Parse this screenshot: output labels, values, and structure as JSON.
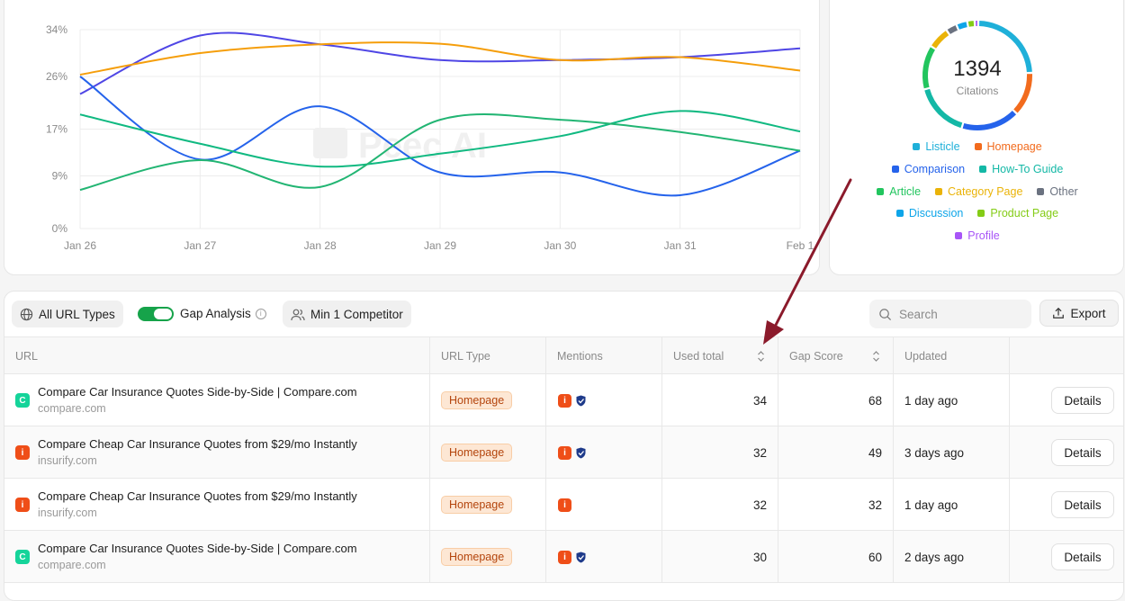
{
  "chart_data": [
    {
      "type": "line",
      "title": "",
      "xlabel": "",
      "ylabel": "",
      "x": [
        "Jan 26",
        "Jan 27",
        "Jan 28",
        "Jan 29",
        "Jan 30",
        "Jan 31",
        "Feb 1"
      ],
      "y_ticks": [
        "0%",
        "9%",
        "17%",
        "26%",
        "34%"
      ],
      "ylim": [
        0,
        34
      ],
      "grid": true,
      "series": [
        {
          "color": "#4f46e5",
          "values": [
            23,
            33,
            31.5,
            28.8,
            28.8,
            29.3,
            30.8
          ]
        },
        {
          "color": "#f59e0b",
          "values": [
            26.3,
            30,
            31.5,
            31.6,
            28.8,
            29.3,
            27
          ]
        },
        {
          "color": "#2563eb",
          "values": [
            26,
            11.8,
            20.9,
            9.6,
            9.6,
            5.7,
            13.3
          ]
        },
        {
          "color": "#10b981",
          "values": [
            19.5,
            14.5,
            10.6,
            12.8,
            15.8,
            20.1,
            16.6
          ]
        },
        {
          "color": "#22b573",
          "values": [
            6.6,
            11.7,
            7.1,
            18.6,
            18.6,
            16.5,
            13.3
          ]
        }
      ],
      "watermark": "Peec AI"
    },
    {
      "type": "pie",
      "title": "",
      "center_value": "1394",
      "center_label": "Citations",
      "slices": [
        {
          "label": "Listicle",
          "color": "#1fb0d9",
          "value": 22
        },
        {
          "label": "Homepage",
          "color": "#f26b1d",
          "value": 12
        },
        {
          "label": "Comparison",
          "color": "#2563eb",
          "value": 16
        },
        {
          "label": "How-To Guide",
          "color": "#14b8a6",
          "value": 15
        },
        {
          "label": "Article",
          "color": "#22c55e",
          "value": 12
        },
        {
          "label": "Category Page",
          "color": "#eab308",
          "value": 6
        },
        {
          "label": "Other",
          "color": "#6b7280",
          "value": 3
        },
        {
          "label": "Discussion",
          "color": "#0ea5e9",
          "value": 3
        },
        {
          "label": "Product Page",
          "color": "#84cc16",
          "value": 2
        },
        {
          "label": "Profile",
          "color": "#a855f7",
          "value": 1
        }
      ]
    }
  ],
  "legend_rows": [
    [
      "Listicle",
      "Homepage"
    ],
    [
      "Comparison",
      "How-To Guide"
    ],
    [
      "Article",
      "Category Page",
      "Other"
    ],
    [
      "Discussion",
      "Product Page"
    ],
    [
      "Profile"
    ]
  ],
  "toolbar": {
    "url_types_label": "All URL Types",
    "gap_analysis_label": "Gap Analysis",
    "competitor_label": "Min 1 Competitor",
    "search_placeholder": "Search",
    "export_label": "Export"
  },
  "table": {
    "columns": [
      "URL",
      "URL Type",
      "Mentions",
      "Used total",
      "Gap Score",
      "Updated",
      ""
    ],
    "details_label": "Details",
    "rows": [
      {
        "title": "Compare Car Insurance Quotes Side-by-Side | Compare.com",
        "domain": "compare.com",
        "favicon": "C",
        "favicon_color": "#15d49a",
        "type": "Homepage",
        "mentions": [
          "brand-icon",
          "shield-icon"
        ],
        "used_total": "34",
        "gap_score": "68",
        "updated": "1 day ago"
      },
      {
        "title": "Compare Cheap Car Insurance Quotes from $29/mo Instantly",
        "domain": "insurify.com",
        "favicon": "i",
        "favicon_color": "#ef4e18",
        "type": "Homepage",
        "mentions": [
          "brand-icon",
          "shield-icon"
        ],
        "used_total": "32",
        "gap_score": "49",
        "updated": "3 days ago"
      },
      {
        "title": "Compare Cheap Car Insurance Quotes from $29/mo Instantly",
        "domain": "insurify.com",
        "favicon": "i",
        "favicon_color": "#ef4e18",
        "type": "Homepage",
        "mentions": [
          "brand-icon"
        ],
        "used_total": "32",
        "gap_score": "32",
        "updated": "1 day ago"
      },
      {
        "title": "Compare Car Insurance Quotes Side-by-Side | Compare.com",
        "domain": "compare.com",
        "favicon": "C",
        "favicon_color": "#15d49a",
        "type": "Homepage",
        "mentions": [
          "brand-icon",
          "shield-icon"
        ],
        "used_total": "30",
        "gap_score": "60",
        "updated": "2 days ago"
      }
    ]
  },
  "annotation_color": "#8b1a2b"
}
